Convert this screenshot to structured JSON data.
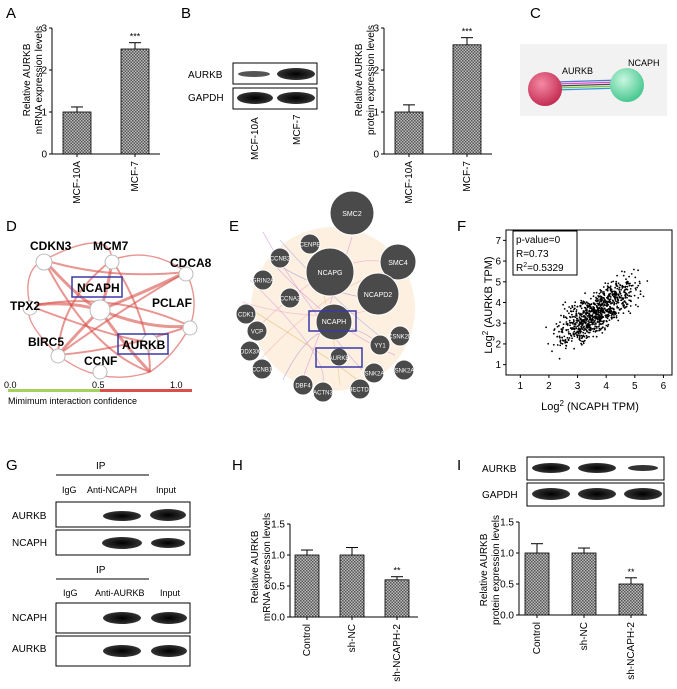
{
  "panels": {
    "A": "A",
    "B": "B",
    "C": "C",
    "D": "D",
    "E": "E",
    "F": "F",
    "G": "G",
    "H": "H",
    "I": "I"
  },
  "sig": {
    "three": "***",
    "two": "**"
  },
  "colors": {
    "bar_fill": "#9a9a9a",
    "blot_band": "#1a1a1a",
    "gene_node": "#4a4a4a",
    "highlight_box": "#3a3aa8",
    "edge_red": "#d9504a",
    "aurkb_node": "#d23c63",
    "ncaph_node": "#4fd39b"
  },
  "panelA": {
    "ylabel_lines": [
      "Relative AURKB",
      "mRNA expression levels"
    ],
    "ticks": [
      "0",
      "1",
      "2",
      "3"
    ],
    "categories": [
      "MCF-10A",
      "MCF-7"
    ],
    "values": [
      1.0,
      2.5
    ],
    "errors": [
      0.12,
      0.15
    ]
  },
  "panelB": {
    "blot_rows": [
      "AURKB",
      "GAPDH"
    ],
    "blot_lanes": [
      "MCF-10A",
      "MCF-7"
    ],
    "ylabel_lines": [
      "Relative AURKB",
      "protein expression levels"
    ],
    "ticks": [
      "0",
      "1",
      "2",
      "3"
    ],
    "categories": [
      "MCF-10A",
      "MCF-7"
    ],
    "values": [
      1.0,
      2.6
    ],
    "errors": [
      0.17,
      0.17
    ]
  },
  "panelC": {
    "nodes": [
      "AURKB",
      "NCAPH"
    ]
  },
  "panelD": {
    "genes": [
      "CDKN3",
      "MCM7",
      "CDCA8",
      "NCAPH",
      "TPX2",
      "PCLAF",
      "BIRC5",
      "AURKB",
      "CCNF"
    ],
    "legend_ticks": [
      "0.0",
      "0.5",
      "1.0"
    ],
    "legend_label": "Mimimum interaction confidence"
  },
  "panelE": {
    "big_nodes": [
      "SMC2",
      "SMC4",
      "NCAPG",
      "NCAPD2",
      "NCAPH"
    ],
    "small_nodes": [
      "CENPE",
      "CCNB2",
      "GRIN2A",
      "CCNA2",
      "CDK1",
      "VCP",
      "DDX3X",
      "CCNB1",
      "DBF4",
      "ACTN3",
      "HECTD3",
      "CSNK2A1",
      "CSNK2A2",
      "YY1",
      "CSNK2B",
      "AURKB"
    ]
  },
  "panelF": {
    "stats": [
      "p-value=0",
      "R=0.73",
      "R"
    ],
    "r2_sup": "2",
    "r2_val": "=0.5329",
    "xlabel_base": "Log",
    "xlabel_sup": "2",
    "xlabel_rest": " (NCAPH TPM)",
    "ylabel_base": "Log",
    "ylabel_sup": "2",
    "ylabel_rest": " (AURKB TPM)",
    "xticks": [
      "1",
      "2",
      "3",
      "4",
      "5",
      "6"
    ],
    "yticks": [
      "1",
      "2",
      "3",
      "4",
      "5",
      "6",
      "7"
    ]
  },
  "panelG": {
    "ip_label": "IP",
    "top_lanes": [
      "IgG",
      "Anti-NCAPH",
      "Input"
    ],
    "top_rows": [
      "AURKB",
      "NCAPH"
    ],
    "bottom_lanes": [
      "IgG",
      "Anti-AURKB",
      "Input"
    ],
    "bottom_rows": [
      "NCAPH",
      "AURKB"
    ]
  },
  "panelH": {
    "ylabel_lines": [
      "Relative AURKB",
      "mRNA expression levels"
    ],
    "ticks": [
      "0.0",
      "0.5",
      "1.0",
      "1.5"
    ],
    "categories": [
      "Control",
      "sh-NC",
      "sh-NCAPH-2"
    ],
    "values": [
      1.0,
      1.0,
      0.6
    ],
    "errors": [
      0.08,
      0.12,
      0.05
    ]
  },
  "panelI": {
    "blot_rows": [
      "AURKB",
      "GAPDH"
    ],
    "ylabel_lines": [
      "Relative AURKB",
      "protein expression levels"
    ],
    "ticks": [
      "0.0",
      "0.5",
      "1.0",
      "1.5"
    ],
    "categories": [
      "Control",
      "sh-NC",
      "sh-NCAPH-2"
    ],
    "values": [
      1.0,
      1.0,
      0.5
    ],
    "errors": [
      0.15,
      0.08,
      0.1
    ]
  },
  "chart_data": [
    {
      "type": "bar",
      "categories": [
        "MCF-10A",
        "MCF-7"
      ],
      "values": [
        1.0,
        2.5
      ],
      "ylabel": "Relative AURKB mRNA expression levels",
      "ylim": [
        0,
        3
      ]
    },
    {
      "type": "bar",
      "categories": [
        "MCF-10A",
        "MCF-7"
      ],
      "values": [
        1.0,
        2.6
      ],
      "ylabel": "Relative AURKB protein expression levels",
      "ylim": [
        0,
        3
      ]
    },
    {
      "type": "scatter",
      "xlabel": "Log2 (NCAPH TPM)",
      "ylabel": "Log2 (AURKB TPM)",
      "xlim": [
        0.5,
        6.3
      ],
      "ylim": [
        0.5,
        7.5
      ]
    },
    {
      "type": "bar",
      "categories": [
        "Control",
        "sh-NC",
        "sh-NCAPH-2"
      ],
      "values": [
        1.0,
        1.0,
        0.6
      ],
      "ylabel": "Relative AURKB mRNA expression levels",
      "ylim": [
        0,
        1.5
      ]
    },
    {
      "type": "bar",
      "categories": [
        "Control",
        "sh-NC",
        "sh-NCAPH-2"
      ],
      "values": [
        1.0,
        1.0,
        0.5
      ],
      "ylabel": "Relative AURKB protein expression levels",
      "ylim": [
        0,
        1.5
      ]
    }
  ]
}
